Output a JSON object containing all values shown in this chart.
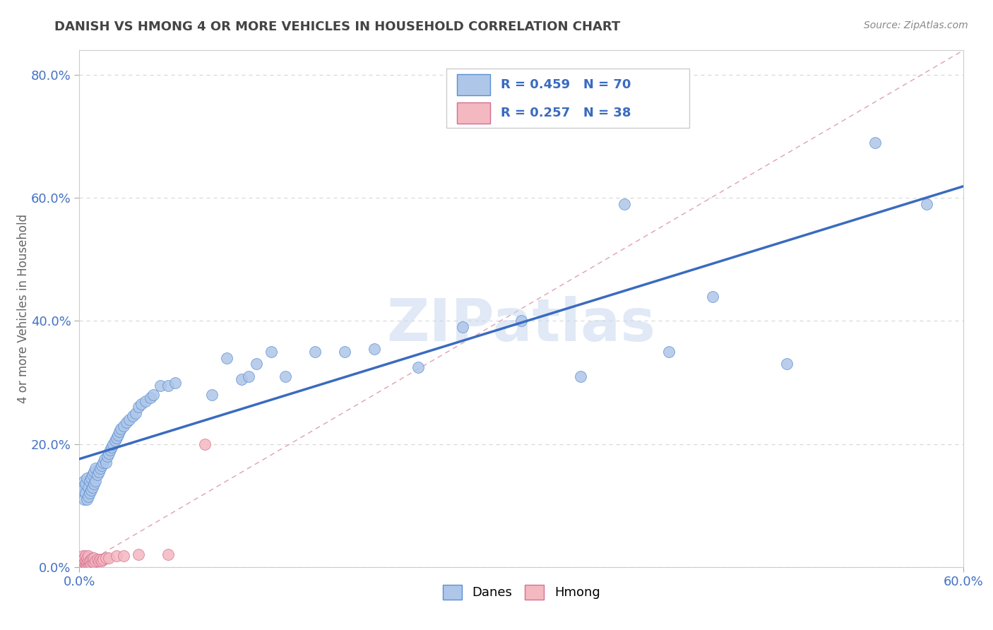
{
  "title": "DANISH VS HMONG 4 OR MORE VEHICLES IN HOUSEHOLD CORRELATION CHART",
  "source": "Source: ZipAtlas.com",
  "ylabel": "4 or more Vehicles in Household",
  "xlim": [
    0.0,
    0.6
  ],
  "ylim": [
    0.0,
    0.84
  ],
  "ytick_positions": [
    0.0,
    0.2,
    0.4,
    0.6,
    0.8
  ],
  "ytick_labels": [
    "0.0%",
    "20.0%",
    "40.0%",
    "60.0%",
    "80.0%"
  ],
  "danes_color": "#aec6e8",
  "hmong_color": "#f4b8c1",
  "danes_edge_color": "#5b8fd4",
  "hmong_edge_color": "#d47090",
  "trendline_danes_color": "#3a6bbf",
  "trendline_hmong_color": "#e07090",
  "diag_color": "#e0a0b0",
  "danes_R": 0.459,
  "danes_N": 70,
  "hmong_R": 0.257,
  "hmong_N": 38,
  "legend_label_danes": "Danes",
  "legend_label_hmong": "Hmong",
  "danes_x": [
    0.001,
    0.002,
    0.003,
    0.003,
    0.004,
    0.004,
    0.005,
    0.005,
    0.006,
    0.006,
    0.007,
    0.007,
    0.008,
    0.008,
    0.009,
    0.009,
    0.01,
    0.01,
    0.011,
    0.011,
    0.012,
    0.013,
    0.014,
    0.015,
    0.016,
    0.017,
    0.018,
    0.019,
    0.02,
    0.021,
    0.022,
    0.023,
    0.024,
    0.025,
    0.026,
    0.027,
    0.028,
    0.03,
    0.032,
    0.034,
    0.036,
    0.038,
    0.04,
    0.042,
    0.045,
    0.048,
    0.05,
    0.055,
    0.06,
    0.065,
    0.09,
    0.1,
    0.11,
    0.115,
    0.12,
    0.13,
    0.14,
    0.16,
    0.18,
    0.2,
    0.23,
    0.26,
    0.3,
    0.34,
    0.37,
    0.4,
    0.43,
    0.48,
    0.54,
    0.575
  ],
  "danes_y": [
    0.13,
    0.125,
    0.11,
    0.14,
    0.12,
    0.135,
    0.11,
    0.145,
    0.115,
    0.13,
    0.12,
    0.14,
    0.125,
    0.145,
    0.13,
    0.15,
    0.135,
    0.155,
    0.14,
    0.16,
    0.15,
    0.155,
    0.16,
    0.165,
    0.17,
    0.175,
    0.17,
    0.18,
    0.185,
    0.19,
    0.195,
    0.2,
    0.205,
    0.21,
    0.215,
    0.22,
    0.225,
    0.23,
    0.235,
    0.24,
    0.245,
    0.25,
    0.26,
    0.265,
    0.27,
    0.275,
    0.28,
    0.295,
    0.295,
    0.3,
    0.28,
    0.34,
    0.305,
    0.31,
    0.33,
    0.35,
    0.31,
    0.35,
    0.35,
    0.355,
    0.325,
    0.39,
    0.4,
    0.31,
    0.59,
    0.35,
    0.44,
    0.33,
    0.69,
    0.59
  ],
  "hmong_x": [
    0.001,
    0.001,
    0.002,
    0.002,
    0.002,
    0.003,
    0.003,
    0.003,
    0.004,
    0.004,
    0.004,
    0.005,
    0.005,
    0.005,
    0.006,
    0.006,
    0.006,
    0.007,
    0.007,
    0.008,
    0.008,
    0.009,
    0.009,
    0.01,
    0.01,
    0.011,
    0.012,
    0.013,
    0.014,
    0.015,
    0.016,
    0.018,
    0.02,
    0.025,
    0.03,
    0.04,
    0.06,
    0.085
  ],
  "hmong_y": [
    0.005,
    0.015,
    0.005,
    0.01,
    0.018,
    0.003,
    0.008,
    0.015,
    0.005,
    0.01,
    0.018,
    0.003,
    0.008,
    0.015,
    0.005,
    0.01,
    0.018,
    0.005,
    0.01,
    0.005,
    0.012,
    0.008,
    0.015,
    0.008,
    0.015,
    0.01,
    0.012,
    0.01,
    0.012,
    0.01,
    0.012,
    0.015,
    0.015,
    0.018,
    0.018,
    0.02,
    0.02,
    0.2
  ],
  "watermark_text": "ZIPatlas",
  "background_color": "#ffffff",
  "grid_color": "#d8d8d8"
}
